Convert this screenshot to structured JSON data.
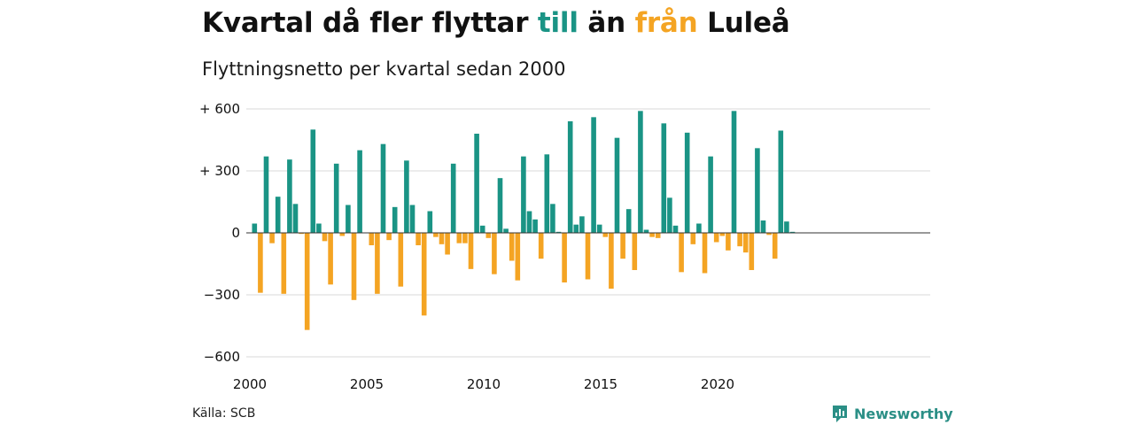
{
  "header": {
    "title_part1": "Kvartal då fler flyttar ",
    "title_in": "till",
    "title_mid": " än ",
    "title_out": "från",
    "title_part2": " Luleå",
    "subtitle": "Flyttningsnetto per kvartal sedan 2000"
  },
  "footer": {
    "source": "Källa: SCB",
    "brand": "Newsworthy"
  },
  "colors": {
    "positive": "#1a9485",
    "negative": "#f4a423",
    "grid": "#d9d9d9",
    "brand": "#2b8f86"
  },
  "chart_data": {
    "type": "bar",
    "title": "Kvartal då fler flyttar till än från Luleå",
    "subtitle": "Flyttningsnetto per kvartal sedan 2000",
    "xlabel": "",
    "ylabel": "",
    "x_start": "2000 Q1",
    "x_ticks": [
      2000,
      2005,
      2010,
      2015,
      2020
    ],
    "y_ticks": [
      600,
      300,
      0,
      -300,
      -600
    ],
    "y_tick_labels": [
      "+ 600",
      "+ 300",
      "0",
      "−300",
      "−600"
    ],
    "ylim": [
      -600,
      600
    ],
    "grid": true,
    "values": [
      45,
      -290,
      370,
      -50,
      175,
      -295,
      355,
      140,
      -5,
      -470,
      500,
      45,
      -40,
      -250,
      335,
      -15,
      135,
      -325,
      400,
      0,
      -60,
      -295,
      430,
      -35,
      125,
      -260,
      350,
      135,
      -60,
      -400,
      105,
      -20,
      -55,
      -105,
      335,
      -50,
      -50,
      -175,
      480,
      35,
      -25,
      -200,
      265,
      20,
      -135,
      -230,
      370,
      105,
      65,
      -125,
      380,
      140,
      5,
      -240,
      540,
      40,
      80,
      -225,
      560,
      40,
      -20,
      -270,
      460,
      -125,
      115,
      -180,
      590,
      15,
      -20,
      -25,
      530,
      170,
      35,
      -190,
      485,
      -55,
      45,
      -195,
      370,
      -45,
      -15,
      -85,
      590,
      -65,
      -95,
      -180,
      410,
      60,
      -10,
      -125,
      495,
      55,
      5
    ]
  }
}
